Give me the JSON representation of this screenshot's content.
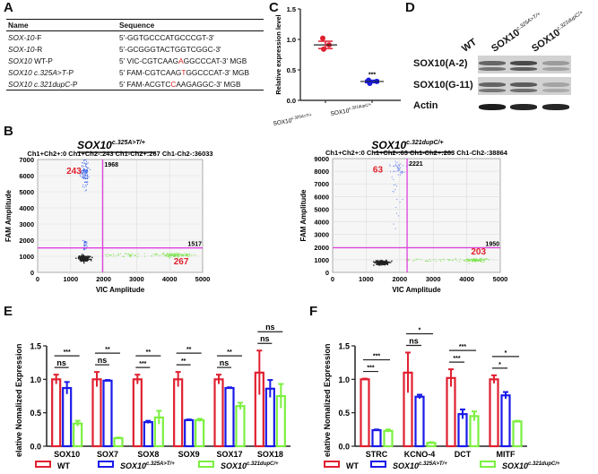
{
  "panels": {
    "A": "A",
    "B": "B",
    "C": "C",
    "D": "D",
    "E": "E",
    "F": "F"
  },
  "panelA": {
    "headers": [
      "Name",
      "Sequence"
    ],
    "rows": [
      {
        "name_italic": "SOX-10",
        "name_plain": "-F",
        "seq_pre": "5'-GGTGCCCATGCCCGT-3'",
        "seq_hl": "",
        "seq_post": ""
      },
      {
        "name_italic": "SOX-10",
        "name_plain": "-R",
        "seq_pre": "5'-GCGGGTACTGGTCGGC-3'",
        "seq_hl": "",
        "seq_post": ""
      },
      {
        "name_italic": "SOX10",
        "name_plain": " WT-P",
        "seq_pre": "5' VIC-CGTCAAG",
        "seq_hl": "A",
        "seq_post": "GGCCCAT-3' MGB"
      },
      {
        "name_italic": "SOX10 c.325A>T",
        "name_plain": "-P",
        "seq_pre": "5' FAM-CGTCAAG",
        "seq_hl": "T",
        "seq_post": "GGCCCAT-3' MGB"
      },
      {
        "name_italic": "SOX10 c.321dupC",
        "name_plain": "-P",
        "seq_pre": "5' FAM-ACGTC",
        "seq_hl": "C",
        "seq_post": "AAGAGGC-3' MGB"
      }
    ]
  },
  "chart_data": [
    {
      "id": "C",
      "type": "scatter",
      "ylabel": "Relative expression level",
      "ylim": [
        0,
        1.5
      ],
      "yticks": [
        "0.0",
        "0.5",
        "1.0",
        "1.5"
      ],
      "groups": [
        {
          "label_main": "SOX10",
          "label_sup": "c.325A>T/+",
          "color": "#e02030",
          "points": [
            1.02,
            0.91,
            0.84
          ],
          "mean": 0.91,
          "sd_high": 0.97,
          "sd_low": 0.85,
          "annotation": ""
        },
        {
          "label_main": "SOX10",
          "label_sup": "c.321dupC/+",
          "color": "#1a1ae0",
          "points": [
            0.33,
            0.31,
            0.28
          ],
          "mean": 0.31,
          "sd_high": 0.33,
          "sd_low": 0.29,
          "annotation": "***"
        }
      ]
    },
    {
      "id": "B-left",
      "type": "scatter",
      "title_main": "SOX10",
      "title_sup": "c.325A>T/+",
      "header": "Ch1+Ch2+:0 Ch1+Ch2-:243 Ch1-Ch2+:267 Ch1-Ch2-:36033",
      "xlabel": "VIC Amplitude",
      "ylabel": "FAM Amplitude",
      "xlim": [
        0,
        5000
      ],
      "ylim": [
        0,
        7000
      ],
      "xticks": [
        "0",
        "1000",
        "2000",
        "3000",
        "4000",
        "5000"
      ],
      "yticks": [
        "0",
        "1000",
        "2000",
        "3000",
        "4000",
        "5000",
        "6000",
        "7000"
      ],
      "vthreshold": 1968,
      "hthreshold": 1517,
      "vthreshold_label": "1968",
      "hthreshold_label": "1517",
      "clusters": [
        {
          "name": "FAM+",
          "count_label": "243",
          "color": "#3a63e8",
          "cx": 1420,
          "cy": 6200,
          "sx": 60,
          "sy": 400,
          "n": 140,
          "tail": [
            1400,
            2000
          ]
        },
        {
          "name": "VIC+",
          "count_label": "267",
          "color": "#7be34a",
          "cx": 4150,
          "cy": 1100,
          "sx": 200,
          "sy": 60,
          "n": 160,
          "spread": [
            2000,
            4600
          ]
        },
        {
          "name": "negative",
          "count_label": "",
          "color": "#222222",
          "cx": 1400,
          "cy": 900,
          "sx": 80,
          "sy": 80,
          "n": 240
        }
      ]
    },
    {
      "id": "B-right",
      "type": "scatter",
      "title_main": "SOX10",
      "title_sup": "c.321dupC/+",
      "header": "Ch1+Ch2+:0 Ch1+Ch2-:63 Ch1-Ch2+:203 Ch1-Ch2-:38864",
      "xlabel": "VIC Amplitude",
      "ylabel": "FAM Amplitude",
      "xlim": [
        0,
        5000
      ],
      "ylim": [
        0,
        9000
      ],
      "xticks": [
        "0",
        "1000",
        "2000",
        "3000",
        "4000",
        "5000"
      ],
      "yticks": [
        "0",
        "1000",
        "2000",
        "3000",
        "4000",
        "5000",
        "6000",
        "7000",
        "8000",
        "9000"
      ],
      "vthreshold": 2221,
      "hthreshold": 1950,
      "vthreshold_label": "2221",
      "hthreshold_label": "1950",
      "clusters": [
        {
          "name": "FAM+",
          "count_label": "63",
          "color": "#6a86f0",
          "cx": 1900,
          "cy": 8200,
          "sx": 120,
          "sy": 400,
          "n": 60,
          "tail": [
            3500,
            7000
          ]
        },
        {
          "name": "VIC+",
          "count_label": "203",
          "color": "#7be34a",
          "cx": 4250,
          "cy": 1000,
          "sx": 180,
          "sy": 60,
          "n": 140,
          "spread": [
            2200,
            4700
          ]
        },
        {
          "name": "negative",
          "count_label": "",
          "color": "#222222",
          "cx": 1450,
          "cy": 800,
          "sx": 90,
          "sy": 80,
          "n": 240
        }
      ]
    },
    {
      "id": "E",
      "type": "bar",
      "ylabel": "Relative Nomalized Expression",
      "ylim": [
        0,
        1.5
      ],
      "yticks": [
        "0.0",
        "0.5",
        "1.0",
        "1.5"
      ],
      "categories": [
        "SOX10",
        "SOX7",
        "SOX8",
        "SOX9",
        "SOX17",
        "SOX18"
      ],
      "series": [
        {
          "name": "WT",
          "values": [
            1.0,
            1.0,
            1.0,
            1.0,
            1.0,
            1.1
          ],
          "errors": [
            0.07,
            0.11,
            0.07,
            0.11,
            0.07,
            0.33
          ]
        },
        {
          "name": "SOX10 c.325A>T/+",
          "values": [
            0.87,
            0.98,
            0.36,
            0.39,
            0.87,
            0.86
          ],
          "errors": [
            0.09,
            0.01,
            0.02,
            0.01,
            0.01,
            0.13
          ]
        },
        {
          "name": "SOX10 c.321dupC/+",
          "values": [
            0.34,
            0.12,
            0.43,
            0.39,
            0.6,
            0.75
          ],
          "errors": [
            0.04,
            0.01,
            0.1,
            0.02,
            0.05,
            0.18
          ]
        }
      ],
      "significance": [
        {
          "cat": 0,
          "pair": "1-2",
          "label": "ns"
        },
        {
          "cat": 0,
          "pair": "1-3",
          "label": "***"
        },
        {
          "cat": 1,
          "pair": "1-2",
          "label": "ns"
        },
        {
          "cat": 1,
          "pair": "1-3",
          "label": "**"
        },
        {
          "cat": 2,
          "pair": "1-2",
          "label": "***"
        },
        {
          "cat": 2,
          "pair": "1-3",
          "label": "**"
        },
        {
          "cat": 3,
          "pair": "1-2",
          "label": "**"
        },
        {
          "cat": 3,
          "pair": "1-3",
          "label": "**"
        },
        {
          "cat": 4,
          "pair": "1-2",
          "label": "ns"
        },
        {
          "cat": 4,
          "pair": "1-3",
          "label": "**"
        },
        {
          "cat": 5,
          "pair": "1-2",
          "label": "ns"
        },
        {
          "cat": 5,
          "pair": "1-3",
          "label": "ns"
        }
      ]
    },
    {
      "id": "F",
      "type": "bar",
      "ylabel": "Relative Nomalized Expression",
      "ylim": [
        0,
        1.5
      ],
      "yticks": [
        "0.0",
        "0.5",
        "1.0",
        "1.5"
      ],
      "categories": [
        "STRC",
        "KCNQ-4",
        "DCT",
        "MITF"
      ],
      "series": [
        {
          "name": "WT",
          "values": [
            1.0,
            1.1,
            1.02,
            1.0
          ],
          "errors": [
            0.01,
            0.3,
            0.13,
            0.06
          ]
        },
        {
          "name": "SOX10 c.325A>T/+",
          "values": [
            0.24,
            0.74,
            0.48,
            0.76
          ],
          "errors": [
            0.01,
            0.03,
            0.07,
            0.05
          ]
        },
        {
          "name": "SOX10 c.321dupC/+",
          "values": [
            0.23,
            0.05,
            0.45,
            0.37
          ],
          "errors": [
            0.02,
            0.01,
            0.07,
            0.01
          ]
        }
      ],
      "significance": [
        {
          "cat": 0,
          "pair": "1-2",
          "label": "***"
        },
        {
          "cat": 0,
          "pair": "1-3",
          "label": "***"
        },
        {
          "cat": 1,
          "pair": "1-2",
          "label": "ns"
        },
        {
          "cat": 1,
          "pair": "1-3",
          "label": "*"
        },
        {
          "cat": 2,
          "pair": "1-2",
          "label": "***"
        },
        {
          "cat": 2,
          "pair": "1-3",
          "label": "***"
        },
        {
          "cat": 3,
          "pair": "1-2",
          "label": "*"
        },
        {
          "cat": 3,
          "pair": "1-3",
          "label": "*"
        }
      ]
    }
  ],
  "legend": {
    "items": [
      {
        "main": "WT",
        "sup": "",
        "color": "#e02030"
      },
      {
        "main": "SOX10",
        "sup": "c.325A>T/+",
        "color": "#1a1ae8"
      },
      {
        "main": "SOX10",
        "sup": "c.321dupC/+",
        "color": "#7cf040"
      }
    ]
  },
  "panelD": {
    "columns": [
      {
        "main": "WT",
        "sup": ""
      },
      {
        "main": "SOX10",
        "sup": "c.325A>T/+"
      },
      {
        "main": "SOX10",
        "sup": "c.321dupC/+"
      }
    ],
    "rows": [
      "SOX10(A-2)",
      "SOX10(G-11)",
      "Actin"
    ],
    "band_intensity": [
      [
        0.55,
        0.7,
        0.25
      ],
      [
        0.55,
        0.6,
        0.2
      ],
      [
        0.95,
        0.9,
        0.9
      ]
    ]
  }
}
